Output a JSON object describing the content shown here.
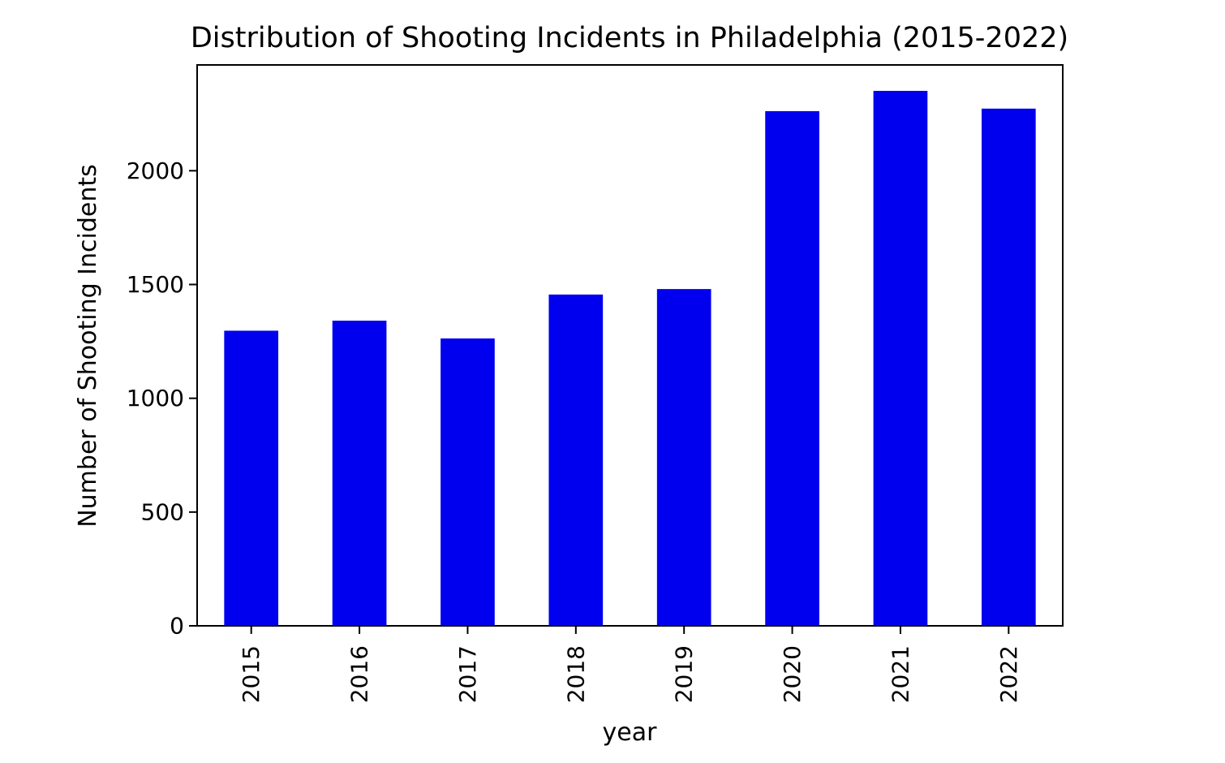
{
  "chart_data": {
    "type": "bar",
    "title": "Distribution of Shooting Incidents in Philadelphia (2015-2022)",
    "xlabel": "year",
    "ylabel": "Number of Shooting Incidents",
    "categories": [
      "2015",
      "2016",
      "2017",
      "2018",
      "2019",
      "2020",
      "2021",
      "2022"
    ],
    "values": [
      1297,
      1341,
      1263,
      1456,
      1480,
      2262,
      2351,
      2273
    ],
    "ylim": [
      0,
      2465
    ],
    "yticks": [
      0,
      500,
      1000,
      1500,
      2000
    ],
    "ytick_labels": [
      "0",
      "500",
      "1000",
      "1500",
      "2000"
    ],
    "bar_color": "#0000ee",
    "grid": false,
    "legend": "none"
  }
}
